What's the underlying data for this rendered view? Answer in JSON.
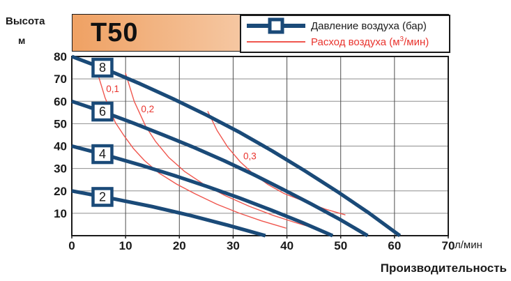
{
  "header": {
    "model": "T50"
  },
  "legend": {
    "pressure_label": "Давление воздуха (бар)",
    "flow_label_pre": "Расход воздуха (м",
    "flow_label_sup": "3",
    "flow_label_post": "/мин)"
  },
  "axes": {
    "y_title": "Высота",
    "y_units": "м",
    "x_units": "л/мин",
    "x_title": "Производительность"
  },
  "colors": {
    "pressure": "#1a4a78",
    "flow": "#f0564e",
    "flow_text": "#e9332d",
    "grid_horizontal": "#8e8e8e",
    "grid_vertical": "#4d4d4d",
    "plot_border": "#1a1a1a",
    "tick_text": "#1a1a1a",
    "header_gradient_left": "#efa163",
    "header_gradient_right": "#fdf6ef"
  },
  "chart_data": {
    "type": "line",
    "title": "T50",
    "xlabel": "Производительность (л/мин)",
    "ylabel": "Высота (м)",
    "x_range": [
      0,
      70
    ],
    "y_range": [
      0,
      80
    ],
    "x_ticks": [
      0,
      10,
      20,
      30,
      40,
      50,
      60,
      70
    ],
    "y_ticks": [
      10,
      20,
      30,
      40,
      50,
      60,
      70,
      80
    ],
    "grid": true,
    "legend_position": "top-right",
    "series_pressure": [
      {
        "label": "8",
        "marker_at": [
          5.7,
          75.0
        ],
        "points": [
          [
            0,
            80
          ],
          [
            6.4,
            74.2
          ],
          [
            12.7,
            67.8
          ],
          [
            18.9,
            61.0
          ],
          [
            25.1,
            53.8
          ],
          [
            31.3,
            46.0
          ],
          [
            37.3,
            37.8
          ],
          [
            43.3,
            29.0
          ],
          [
            49.3,
            19.8
          ],
          [
            55.2,
            10.2
          ],
          [
            61,
            0
          ]
        ]
      },
      {
        "label": "6",
        "marker_at": [
          5.7,
          55.4
        ],
        "points": [
          [
            0,
            60
          ],
          [
            5.8,
            55.3
          ],
          [
            11.5,
            50.2
          ],
          [
            17.1,
            44.9
          ],
          [
            22.7,
            39.4
          ],
          [
            28.3,
            33.5
          ],
          [
            33.7,
            27.4
          ],
          [
            39.1,
            20.9
          ],
          [
            44.5,
            14.2
          ],
          [
            49.8,
            7.3
          ],
          [
            55,
            0
          ]
        ]
      },
      {
        "label": "4",
        "marker_at": [
          5.7,
          36.4
        ],
        "points": [
          [
            0,
            40
          ],
          [
            6.5,
            35.9
          ],
          [
            12.8,
            31.5
          ],
          [
            19.0,
            26.9
          ],
          [
            25.1,
            22.0
          ],
          [
            31.1,
            16.9
          ],
          [
            37.0,
            11.5
          ],
          [
            42.8,
            5.9
          ],
          [
            48.5,
            0
          ]
        ]
      },
      {
        "label": "2",
        "marker_at": [
          5.7,
          17.3
        ],
        "points": [
          [
            0,
            20
          ],
          [
            7.5,
            16.6
          ],
          [
            14.9,
            13.0
          ],
          [
            22.1,
            9.0
          ],
          [
            29.1,
            4.6
          ],
          [
            36,
            0
          ]
        ]
      }
    ],
    "series_flow": [
      {
        "label": "0,1",
        "label_at": [
          7.6,
          65.5
        ],
        "points": [
          [
            4.8,
            72.5
          ],
          [
            6.2,
            61.5
          ],
          [
            8.1,
            50.5
          ],
          [
            9.6,
            45.0
          ],
          [
            11.5,
            38.8
          ],
          [
            13.5,
            33.6
          ],
          [
            16.2,
            28.0
          ],
          [
            19.5,
            23.0
          ],
          [
            22.9,
            18.7
          ],
          [
            27.0,
            14.0
          ],
          [
            31.2,
            10.0
          ],
          [
            35.3,
            6.6
          ],
          [
            39.8,
            3.4
          ]
        ]
      },
      {
        "label": "0,2",
        "label_at": [
          14.1,
          56.5
        ],
        "points": [
          [
            10.0,
            72.5
          ],
          [
            11.6,
            60.0
          ],
          [
            13.7,
            49.0
          ],
          [
            15.6,
            42.0
          ],
          [
            18.0,
            35.0
          ],
          [
            21.0,
            28.6
          ],
          [
            24.5,
            23.0
          ],
          [
            28.5,
            17.9
          ],
          [
            33.0,
            13.1
          ],
          [
            37.5,
            9.0
          ],
          [
            41.5,
            5.9
          ],
          [
            45.4,
            3.1
          ]
        ]
      },
      {
        "label": "0,3",
        "label_at": [
          33.1,
          35.5
        ],
        "points": [
          [
            25.3,
            55.4
          ],
          [
            27.0,
            47.0
          ],
          [
            29.0,
            39.5
          ],
          [
            31.3,
            33.0
          ],
          [
            33.8,
            27.5
          ],
          [
            36.5,
            22.8
          ],
          [
            39.5,
            18.8
          ],
          [
            43.7,
            14.9
          ],
          [
            47.1,
            11.9
          ],
          [
            50.8,
            9.3
          ]
        ]
      }
    ]
  }
}
